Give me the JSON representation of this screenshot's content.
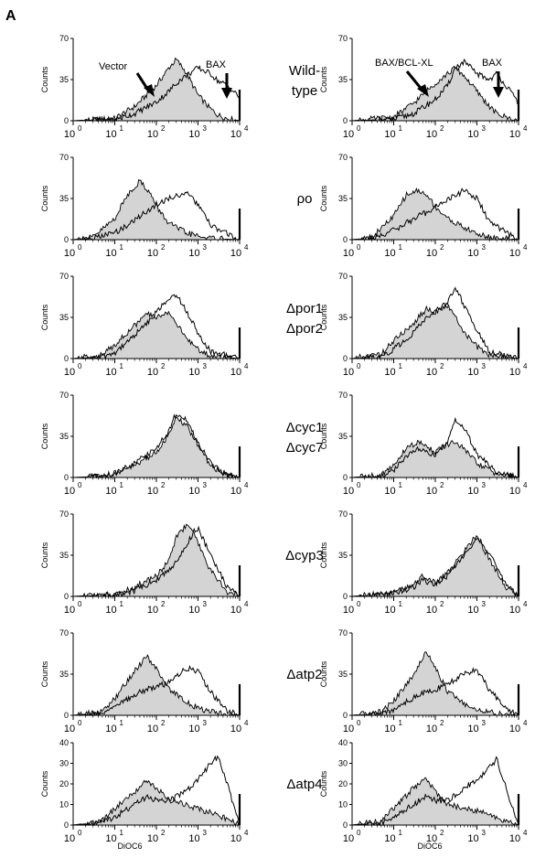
{
  "figure": {
    "panel_label": "A",
    "x_axis_label": "DiOC6",
    "y_axis_label": "Counts",
    "fill_color": "#d4d4d4",
    "line_color": "#000000"
  },
  "annotations": {
    "vector": "Vector",
    "bax": "BAX",
    "bax_bclxl": "BAX/BCL-XL"
  },
  "strains": [
    {
      "line1": "Wild-",
      "line2": "type"
    },
    {
      "line1": "ρo",
      "line2": ""
    },
    {
      "line1": "Δpor1",
      "line2": "Δpor2"
    },
    {
      "line1": "Δcyc1",
      "line2": "Δcyc7"
    },
    {
      "line1": "Δcyp3",
      "line2": ""
    },
    {
      "line1": "Δatp2",
      "line2": ""
    },
    {
      "line1": "Δatp4",
      "line2": ""
    }
  ],
  "chart_data": [
    {
      "type": "area",
      "row": 0,
      "strain": "Wild-type",
      "condition": "vector vs BAX",
      "xscale": "log",
      "xlim": [
        1,
        10000
      ],
      "ylim": [
        0,
        70
      ],
      "yticks": [
        0,
        35,
        70
      ],
      "x": [
        1,
        10,
        30,
        100,
        200,
        300,
        500,
        1000,
        2000,
        3000,
        5000,
        10000
      ],
      "series": [
        {
          "name": "Vector",
          "style": "filled",
          "values": [
            0,
            2,
            12,
            30,
            45,
            52,
            42,
            22,
            10,
            5,
            2,
            0
          ]
        },
        {
          "name": "BAX",
          "style": "outline",
          "values": [
            0,
            1,
            6,
            16,
            25,
            32,
            38,
            45,
            40,
            34,
            30,
            20
          ]
        }
      ]
    },
    {
      "type": "area",
      "row": 0,
      "strain": "Wild-type",
      "condition": "vector vs BAX/BCL-XL",
      "xscale": "log",
      "xlim": [
        1,
        10000
      ],
      "ylim": [
        0,
        70
      ],
      "yticks": [
        0,
        35,
        70
      ],
      "x": [
        1,
        10,
        30,
        100,
        200,
        300,
        500,
        1000,
        2000,
        3000,
        5000,
        10000
      ],
      "series": [
        {
          "name": "BAX/BCL-XL",
          "style": "filled",
          "values": [
            0,
            3,
            15,
            32,
            40,
            45,
            38,
            25,
            12,
            6,
            3,
            0
          ]
        },
        {
          "name": "BAX",
          "style": "outline",
          "values": [
            0,
            1,
            6,
            18,
            30,
            45,
            50,
            40,
            35,
            40,
            30,
            15
          ]
        }
      ]
    },
    {
      "type": "area",
      "row": 1,
      "strain": "ρo",
      "condition": "vector vs BAX",
      "xscale": "log",
      "xlim": [
        1,
        10000
      ],
      "ylim": [
        0,
        70
      ],
      "yticks": [
        0,
        35,
        70
      ],
      "x": [
        1,
        3,
        10,
        20,
        40,
        70,
        100,
        200,
        500,
        1000,
        2000,
        10000
      ],
      "series": [
        {
          "style": "filled",
          "values": [
            0,
            2,
            18,
            38,
            50,
            40,
            28,
            14,
            6,
            3,
            1,
            0
          ]
        },
        {
          "style": "outline",
          "values": [
            0,
            1,
            6,
            12,
            20,
            26,
            30,
            35,
            40,
            30,
            12,
            0
          ]
        }
      ]
    },
    {
      "type": "area",
      "row": 1,
      "strain": "ρo",
      "condition": "vector vs BAX/BCL-XL",
      "xscale": "log",
      "xlim": [
        1,
        10000
      ],
      "ylim": [
        0,
        70
      ],
      "yticks": [
        0,
        35,
        70
      ],
      "x": [
        1,
        3,
        10,
        20,
        40,
        70,
        100,
        200,
        500,
        1000,
        2000,
        10000
      ],
      "series": [
        {
          "style": "filled",
          "values": [
            0,
            2,
            20,
            38,
            42,
            36,
            28,
            18,
            10,
            5,
            2,
            0
          ]
        },
        {
          "style": "outline",
          "values": [
            0,
            1,
            8,
            14,
            20,
            24,
            28,
            34,
            42,
            35,
            15,
            0
          ]
        }
      ]
    },
    {
      "type": "area",
      "row": 2,
      "strain": "Δpor1 Δpor2",
      "condition": "vector vs BAX",
      "xscale": "log",
      "xlim": [
        1,
        10000
      ],
      "ylim": [
        0,
        70
      ],
      "yticks": [
        0,
        35,
        70
      ],
      "x": [
        1,
        5,
        10,
        30,
        60,
        100,
        200,
        300,
        500,
        1000,
        2000,
        10000
      ],
      "series": [
        {
          "style": "filled",
          "values": [
            0,
            3,
            12,
            28,
            38,
            35,
            40,
            30,
            18,
            8,
            2,
            0
          ]
        },
        {
          "style": "outline",
          "values": [
            0,
            1,
            5,
            20,
            30,
            40,
            50,
            55,
            42,
            22,
            6,
            0
          ]
        }
      ]
    },
    {
      "type": "area",
      "row": 2,
      "strain": "Δpor1 Δpor2",
      "condition": "vector vs BAX/BCL-XL",
      "xscale": "log",
      "xlim": [
        1,
        10000
      ],
      "ylim": [
        0,
        70
      ],
      "yticks": [
        0,
        35,
        70
      ],
      "x": [
        1,
        5,
        10,
        30,
        60,
        100,
        200,
        300,
        500,
        1000,
        2000,
        10000
      ],
      "series": [
        {
          "style": "filled",
          "values": [
            0,
            4,
            15,
            30,
            42,
            40,
            44,
            36,
            22,
            10,
            3,
            0
          ]
        },
        {
          "style": "outline",
          "values": [
            0,
            1,
            8,
            22,
            34,
            40,
            48,
            60,
            45,
            24,
            6,
            0
          ]
        }
      ]
    },
    {
      "type": "area",
      "row": 3,
      "strain": "Δcyc1 Δcyc7",
      "condition": "vector vs BAX",
      "xscale": "log",
      "xlim": [
        1,
        10000
      ],
      "ylim": [
        0,
        70
      ],
      "yticks": [
        0,
        35,
        70
      ],
      "x": [
        1,
        5,
        10,
        30,
        100,
        200,
        300,
        500,
        1000,
        2000,
        5000,
        10000
      ],
      "series": [
        {
          "style": "filled",
          "values": [
            0,
            1,
            3,
            10,
            22,
            36,
            50,
            45,
            28,
            10,
            2,
            0
          ]
        },
        {
          "style": "outline",
          "values": [
            0,
            1,
            4,
            12,
            25,
            40,
            55,
            50,
            30,
            12,
            2,
            0
          ]
        }
      ]
    },
    {
      "type": "area",
      "row": 3,
      "strain": "Δcyc1 Δcyc7",
      "condition": "vector vs BAX/BCL-XL",
      "xscale": "log",
      "xlim": [
        1,
        10000
      ],
      "ylim": [
        0,
        70
      ],
      "yticks": [
        0,
        35,
        70
      ],
      "x": [
        1,
        5,
        10,
        20,
        40,
        100,
        200,
        300,
        500,
        1000,
        3000,
        10000
      ],
      "series": [
        {
          "style": "filled",
          "values": [
            0,
            2,
            10,
            25,
            30,
            22,
            28,
            30,
            24,
            12,
            3,
            0
          ]
        },
        {
          "style": "outline",
          "values": [
            0,
            1,
            6,
            18,
            24,
            18,
            30,
            50,
            42,
            20,
            4,
            0
          ]
        }
      ]
    },
    {
      "type": "area",
      "row": 4,
      "strain": "Δcyp3",
      "condition": "vector vs BAX",
      "xscale": "log",
      "xlim": [
        1,
        10000
      ],
      "ylim": [
        0,
        70
      ],
      "yticks": [
        0,
        35,
        70
      ],
      "x": [
        1,
        10,
        30,
        100,
        200,
        300,
        500,
        800,
        1000,
        2000,
        5000,
        10000
      ],
      "series": [
        {
          "style": "filled",
          "values": [
            0,
            2,
            8,
            18,
            30,
            50,
            60,
            55,
            45,
            22,
            4,
            0
          ]
        },
        {
          "style": "outline",
          "values": [
            0,
            1,
            5,
            14,
            22,
            30,
            42,
            55,
            58,
            35,
            8,
            0
          ]
        }
      ]
    },
    {
      "type": "area",
      "row": 4,
      "strain": "Δcyp3",
      "condition": "vector vs BAX/BCL-XL",
      "xscale": "log",
      "xlim": [
        1,
        10000
      ],
      "ylim": [
        0,
        70
      ],
      "yticks": [
        0,
        35,
        70
      ],
      "x": [
        1,
        10,
        30,
        50,
        100,
        200,
        500,
        800,
        1000,
        2000,
        5000,
        10000
      ],
      "series": [
        {
          "style": "filled",
          "values": [
            0,
            3,
            10,
            18,
            12,
            20,
            38,
            48,
            50,
            32,
            8,
            0
          ]
        },
        {
          "style": "outline",
          "values": [
            0,
            2,
            8,
            14,
            10,
            18,
            35,
            45,
            52,
            36,
            10,
            0
          ]
        }
      ]
    },
    {
      "type": "area",
      "row": 5,
      "strain": "Δatp2",
      "condition": "vector vs BAX",
      "xscale": "log",
      "xlim": [
        1,
        10000
      ],
      "ylim": [
        0,
        70
      ],
      "yticks": [
        0,
        35,
        70
      ],
      "x": [
        1,
        5,
        10,
        30,
        60,
        100,
        200,
        500,
        1000,
        2000,
        5000,
        10000
      ],
      "series": [
        {
          "style": "filled",
          "values": [
            0,
            3,
            14,
            38,
            50,
            40,
            22,
            12,
            6,
            3,
            1,
            0
          ]
        },
        {
          "style": "outline",
          "values": [
            0,
            1,
            6,
            18,
            22,
            24,
            28,
            40,
            38,
            20,
            4,
            0
          ]
        }
      ]
    },
    {
      "type": "area",
      "row": 5,
      "strain": "Δatp2",
      "condition": "vector vs BAX/BCL-XL",
      "xscale": "log",
      "xlim": [
        1,
        10000
      ],
      "ylim": [
        0,
        70
      ],
      "yticks": [
        0,
        35,
        70
      ],
      "x": [
        1,
        5,
        10,
        30,
        60,
        100,
        200,
        500,
        1000,
        2000,
        5000,
        10000
      ],
      "series": [
        {
          "style": "filled",
          "values": [
            0,
            3,
            12,
            35,
            55,
            40,
            20,
            10,
            5,
            3,
            1,
            0
          ]
        },
        {
          "style": "outline",
          "values": [
            0,
            1,
            5,
            15,
            20,
            22,
            26,
            36,
            38,
            22,
            5,
            0
          ]
        }
      ]
    },
    {
      "type": "area",
      "row": 6,
      "strain": "Δatp4",
      "condition": "vector vs BAX",
      "xscale": "log",
      "xlim": [
        1,
        10000
      ],
      "ylim": [
        0,
        40
      ],
      "yticks": [
        0,
        10,
        20,
        30,
        40
      ],
      "x": [
        1,
        5,
        10,
        30,
        60,
        100,
        200,
        500,
        1000,
        2000,
        3000,
        5000,
        10000
      ],
      "series": [
        {
          "style": "filled",
          "values": [
            0,
            2,
            8,
            16,
            22,
            18,
            12,
            10,
            8,
            6,
            5,
            3,
            0
          ]
        },
        {
          "style": "outline",
          "values": [
            0,
            1,
            4,
            10,
            14,
            12,
            12,
            16,
            22,
            30,
            33,
            20,
            0
          ]
        }
      ]
    },
    {
      "type": "area",
      "row": 6,
      "strain": "Δatp4",
      "condition": "vector vs BAX/BCL-XL",
      "xscale": "log",
      "xlim": [
        1,
        10000
      ],
      "ylim": [
        0,
        40
      ],
      "yticks": [
        0,
        10,
        20,
        30,
        40
      ],
      "x": [
        1,
        5,
        10,
        30,
        60,
        100,
        200,
        500,
        1000,
        2000,
        3000,
        5000,
        10000
      ],
      "series": [
        {
          "style": "filled",
          "values": [
            0,
            2,
            8,
            18,
            22,
            16,
            10,
            8,
            7,
            5,
            4,
            2,
            0
          ]
        },
        {
          "style": "outline",
          "values": [
            0,
            1,
            4,
            10,
            14,
            12,
            12,
            18,
            22,
            28,
            32,
            18,
            0
          ]
        }
      ]
    }
  ]
}
